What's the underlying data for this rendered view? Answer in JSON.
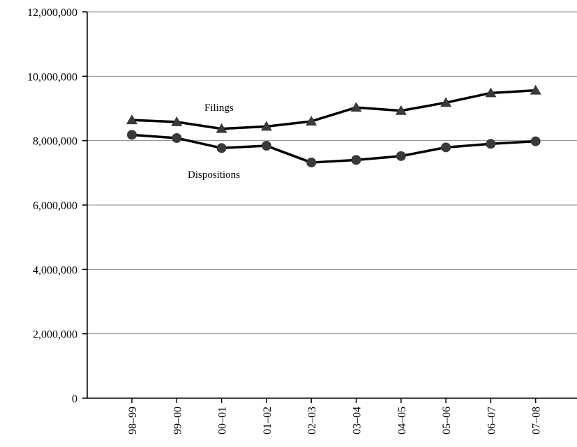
{
  "chart_data": {
    "type": "line",
    "title": "",
    "xlabel": "",
    "ylabel": "",
    "categories": [
      "98–99",
      "99–00",
      "00–01",
      "01–02",
      "02–03",
      "03–04",
      "04–05",
      "05–06",
      "06–07",
      "07–08"
    ],
    "ylim": [
      0,
      12000000
    ],
    "yticks": [
      0,
      2000000,
      4000000,
      6000000,
      8000000,
      10000000,
      12000000
    ],
    "ytick_labels": [
      "0",
      "2,000,000",
      "4,000,000",
      "6,000,000",
      "8,000,000",
      "10,000,000",
      "12,000,000"
    ],
    "grid": true,
    "legend": "none",
    "series": [
      {
        "name": "Filings",
        "marker": "triangle",
        "color": "#000000",
        "values": [
          8640000,
          8580000,
          8370000,
          8440000,
          8600000,
          9030000,
          8930000,
          9180000,
          9480000,
          9560000
        ]
      },
      {
        "name": "Dispositions",
        "marker": "circle",
        "color": "#000000",
        "values": [
          8180000,
          8080000,
          7770000,
          7840000,
          7320000,
          7400000,
          7520000,
          7790000,
          7900000,
          7980000
        ]
      }
    ]
  }
}
